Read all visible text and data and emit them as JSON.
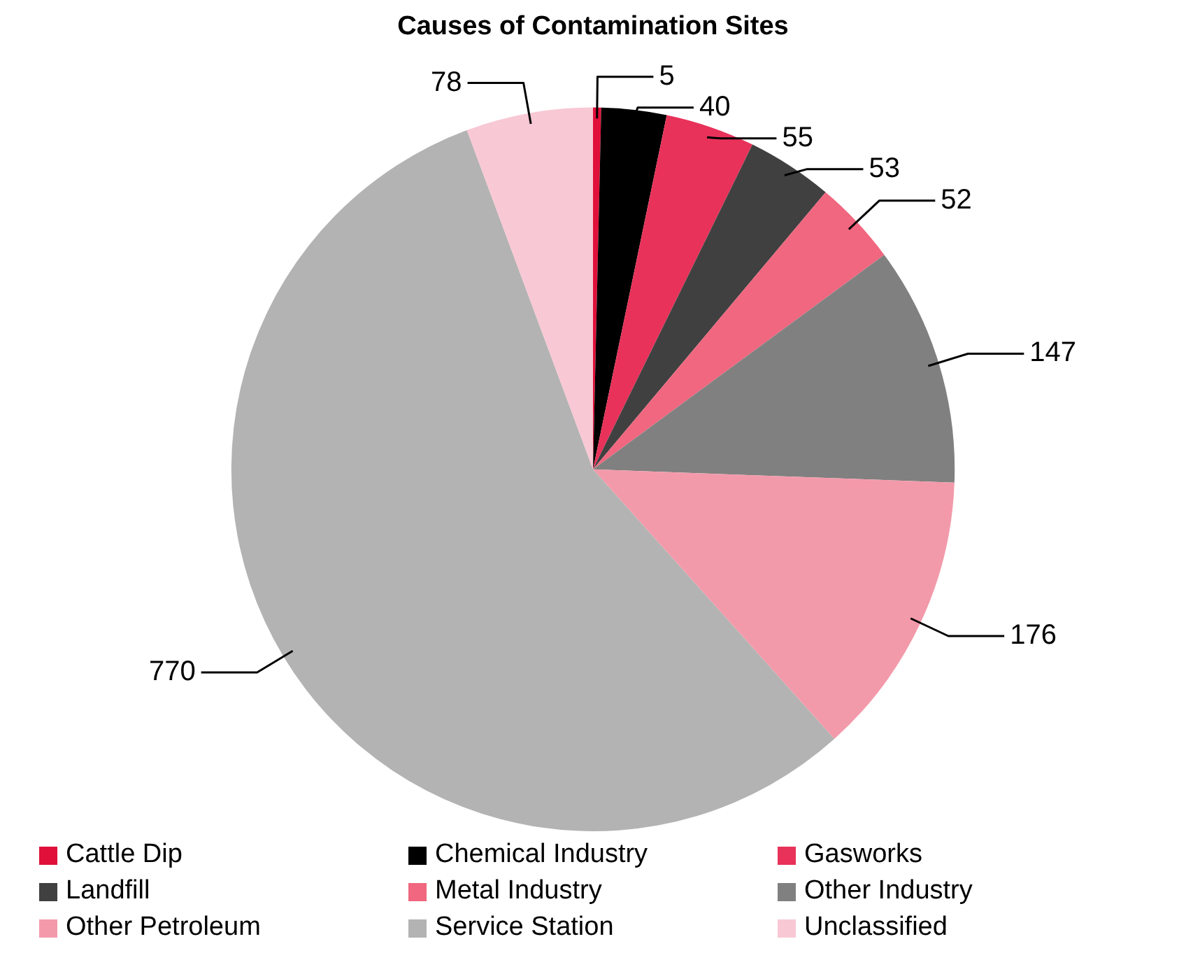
{
  "chart_data": {
    "type": "pie",
    "title": "Causes of Contamination Sites",
    "categories": [
      "Cattle Dip",
      "Chemical Industry",
      "Gasworks",
      "Landfill",
      "Metal Industry",
      "Other Industry",
      "Other Petroleum",
      "Service Station",
      "Unclassified"
    ],
    "values": [
      5,
      40,
      55,
      53,
      52,
      147,
      176,
      770,
      78
    ],
    "colors": [
      "#e0103a",
      "#000000",
      "#e8325a",
      "#404040",
      "#f0677f",
      "#808080",
      "#f39aaa",
      "#b3b3b3",
      "#f8c8d4"
    ],
    "data_labels": true,
    "legend": "bottom"
  }
}
